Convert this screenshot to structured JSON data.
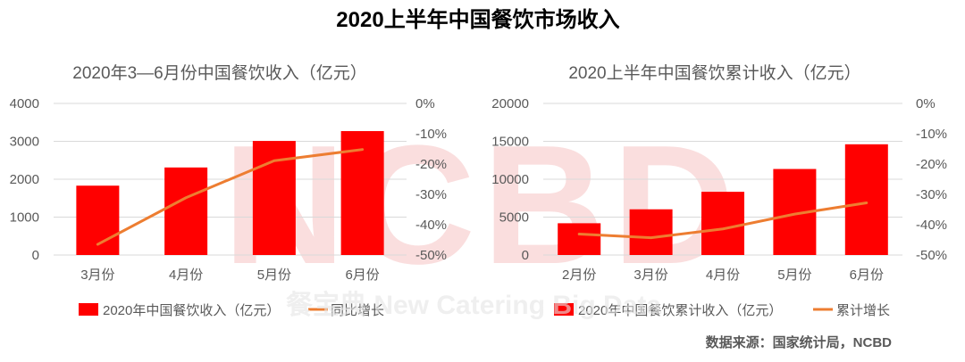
{
  "title": "2020上半年中国餐饮市场收入",
  "watermark_big": "NCBD",
  "watermark_small": "餐宝典 New Catering Big Data",
  "source": "数据来源：国家统计局，NCBD",
  "colors": {
    "bar": "#ff0000",
    "line": "#ed7d31",
    "text": "#595959",
    "title": "#000000",
    "grid": "#d9d9d9",
    "watermark": "#f7c9c9"
  },
  "chart_data": [
    {
      "type": "bar",
      "title": "2020年3—6月份中国餐饮收入（亿元）",
      "categories": [
        "3月份",
        "4月份",
        "5月份",
        "6月份"
      ],
      "series": [
        {
          "name": "2020年中国餐饮收入（亿元）",
          "type": "bar",
          "axis": "left",
          "values": [
            1830,
            2310,
            3010,
            3270
          ]
        },
        {
          "name": "同比增长",
          "type": "line",
          "axis": "right",
          "values": [
            -46.5,
            -31.1,
            -18.9,
            -15.2
          ]
        }
      ],
      "ylim": [
        0,
        4000
      ],
      "yticks": [
        "4000",
        "3000",
        "2000",
        "1000",
        "0"
      ],
      "y2lim": [
        -50,
        0
      ],
      "y2ticks": [
        "0%",
        "-10%",
        "-20%",
        "-30%",
        "-40%",
        "-50%"
      ],
      "grid": true,
      "legend": "bottom"
    },
    {
      "type": "bar",
      "title": "2020上半年中国餐饮累计收入（亿元）",
      "categories": [
        "2月份",
        "3月份",
        "4月份",
        "5月份",
        "6月份"
      ],
      "series": [
        {
          "name": "2020年中国餐饮累计收入（亿元）",
          "type": "bar",
          "axis": "left",
          "values": [
            4190,
            6030,
            8340,
            11350,
            14610
          ]
        },
        {
          "name": "累计增长",
          "type": "line",
          "axis": "right",
          "values": [
            -43.1,
            -44.3,
            -41.4,
            -36.5,
            -32.8
          ]
        }
      ],
      "ylim": [
        0,
        20000
      ],
      "yticks": [
        "20000",
        "15000",
        "10000",
        "5000",
        "0"
      ],
      "y2lim": [
        -50,
        0
      ],
      "y2ticks": [
        "0%",
        "-10%",
        "-20%",
        "-30%",
        "-40%",
        "-50%"
      ],
      "grid": true,
      "legend": "bottom"
    }
  ]
}
